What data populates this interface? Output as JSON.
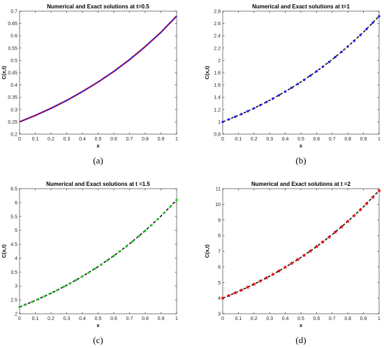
{
  "chart_data": [
    {
      "type": "line",
      "caption": "(a)",
      "title": "Numerical and Exact solutions at t=0.5",
      "xlabel": "x",
      "ylabel": "C(x,t)",
      "xlim": [
        0,
        1
      ],
      "ylim": [
        0.2,
        0.7
      ],
      "xticks": [
        "0",
        "0.1",
        "0.2",
        "0.3",
        "0.4",
        "0.5",
        "0.6",
        "0.7",
        "0.8",
        "0.9",
        "1"
      ],
      "yticks": [
        "0.2",
        "0.25",
        "0.3",
        "0.35",
        "0.4",
        "0.45",
        "0.5",
        "0.55",
        "0.6",
        "0.65",
        "0.7"
      ],
      "series": [
        {
          "style": "solid",
          "color": "#1a1aff",
          "x": [
            0,
            0.1,
            0.2,
            0.3,
            0.4,
            0.5,
            0.6,
            0.7,
            0.8,
            0.9,
            1.0
          ],
          "y": [
            0.25,
            0.276,
            0.305,
            0.337,
            0.373,
            0.412,
            0.455,
            0.503,
            0.556,
            0.614,
            0.68
          ]
        },
        {
          "style": "dashed",
          "color": "#cc0000",
          "x": [
            0,
            0.1,
            0.2,
            0.3,
            0.4,
            0.5,
            0.6,
            0.7,
            0.8,
            0.9,
            1.0
          ],
          "y": [
            0.25,
            0.276,
            0.305,
            0.337,
            0.373,
            0.412,
            0.455,
            0.503,
            0.556,
            0.614,
            0.68
          ]
        }
      ]
    },
    {
      "type": "line",
      "caption": "(b)",
      "title": "Numerical and Exact solutions at t=1",
      "xlabel": "x",
      "ylabel": "C(x,t)",
      "xlim": [
        0,
        1
      ],
      "ylim": [
        0.8,
        2.8
      ],
      "xticks": [
        "0",
        "0.1",
        "0.2",
        "0.3",
        "0.4",
        "0.5",
        "0.6",
        "0.7",
        "0.8",
        "0.9",
        "1"
      ],
      "yticks": [
        "0.8",
        "1",
        "1.2",
        "1.4",
        "1.6",
        "1.8",
        "2",
        "2.2",
        "2.4",
        "2.6",
        "2.8"
      ],
      "series": [
        {
          "style": "dashed",
          "color": "#111111",
          "x": [
            0,
            0.1,
            0.2,
            0.3,
            0.4,
            0.5,
            0.6,
            0.7,
            0.8,
            0.9,
            1.0
          ],
          "y": [
            1.0,
            1.105,
            1.221,
            1.35,
            1.492,
            1.649,
            1.822,
            2.014,
            2.226,
            2.46,
            2.718
          ]
        },
        {
          "style": "dots",
          "color": "#1a1aff",
          "x": [
            0,
            0.04,
            0.08,
            0.12,
            0.16,
            0.2,
            0.24,
            0.28,
            0.32,
            0.36,
            0.4,
            0.44,
            0.48,
            0.52,
            0.56,
            0.6,
            0.64,
            0.68,
            0.72,
            0.76,
            0.8,
            0.84,
            0.88,
            0.92,
            0.96,
            1.0
          ],
          "y": [
            1.0,
            1.041,
            1.083,
            1.127,
            1.174,
            1.221,
            1.271,
            1.323,
            1.377,
            1.433,
            1.492,
            1.553,
            1.616,
            1.682,
            1.751,
            1.822,
            1.896,
            1.974,
            2.054,
            2.138,
            2.226,
            2.316,
            2.411,
            2.509,
            2.612,
            2.718
          ]
        }
      ]
    },
    {
      "type": "line",
      "caption": "(c)",
      "title": "Numerical and Exact solutions at t =1.5",
      "xlabel": "x",
      "ylabel": "C(x,t)",
      "xlim": [
        0,
        1
      ],
      "ylim": [
        2,
        6.5
      ],
      "xticks": [
        "0",
        "0.1",
        "0.2",
        "0.3",
        "0.4",
        "0.5",
        "0.6",
        "0.7",
        "0.8",
        "0.9",
        "1"
      ],
      "yticks": [
        "2",
        "2.5",
        "3",
        "3.5",
        "4",
        "4.5",
        "5",
        "5.5",
        "6",
        "6.5"
      ],
      "series": [
        {
          "style": "dashed",
          "color": "#111111",
          "x": [
            0,
            0.1,
            0.2,
            0.3,
            0.4,
            0.5,
            0.6,
            0.7,
            0.8,
            0.9,
            1.0
          ],
          "y": [
            2.241,
            2.477,
            2.738,
            3.025,
            3.343,
            3.695,
            4.084,
            4.514,
            4.988,
            5.513,
            6.093
          ]
        },
        {
          "style": "dots",
          "color": "#22cc22",
          "x": [
            0,
            0.04,
            0.08,
            0.12,
            0.16,
            0.2,
            0.24,
            0.28,
            0.32,
            0.36,
            0.4,
            0.44,
            0.48,
            0.52,
            0.56,
            0.6,
            0.64,
            0.68,
            0.72,
            0.76,
            0.8,
            0.84,
            0.88,
            0.92,
            0.96,
            1.0
          ],
          "y": [
            2.241,
            2.333,
            2.428,
            2.526,
            2.629,
            2.738,
            2.849,
            2.965,
            3.086,
            3.212,
            3.343,
            3.479,
            3.621,
            3.769,
            3.923,
            4.084,
            4.25,
            4.423,
            4.604,
            4.792,
            4.988,
            5.191,
            5.403,
            5.624,
            5.854,
            6.093
          ]
        }
      ]
    },
    {
      "type": "scatter",
      "caption": "(d)",
      "title": "Numerical and Exact solutions at t =2",
      "xlabel": "x",
      "ylabel": "C(x,t)",
      "xlim": [
        0,
        1
      ],
      "ylim": [
        3,
        11
      ],
      "xticks": [
        "0",
        "0.1",
        "0.2",
        "0.3",
        "0.4",
        "0.5",
        "0.6",
        "0.7",
        "0.8",
        "0.9",
        "1"
      ],
      "yticks": [
        "3",
        "4",
        "5",
        "6",
        "7",
        "8",
        "9",
        "10",
        "11"
      ],
      "series": [
        {
          "style": "dashed",
          "color": "#111111",
          "x": [
            0,
            0.1,
            0.2,
            0.3,
            0.4,
            0.5,
            0.6,
            0.7,
            0.8,
            0.9,
            1.0
          ],
          "y": [
            4.0,
            4.424,
            4.889,
            5.403,
            5.972,
            6.6,
            7.294,
            8.061,
            8.909,
            9.846,
            10.88
          ]
        },
        {
          "style": "stars",
          "color": "#e60000",
          "x": [
            0,
            0.04,
            0.08,
            0.12,
            0.16,
            0.2,
            0.24,
            0.28,
            0.32,
            0.36,
            0.4,
            0.44,
            0.48,
            0.52,
            0.56,
            0.6,
            0.64,
            0.68,
            0.72,
            0.76,
            0.8,
            0.84,
            0.88,
            0.92,
            0.96,
            1.0
          ],
          "y": [
            4.0,
            4.166,
            4.336,
            4.512,
            4.697,
            4.889,
            5.089,
            5.296,
            5.512,
            5.737,
            5.972,
            6.215,
            6.468,
            6.732,
            7.006,
            7.294,
            7.591,
            7.901,
            8.223,
            8.559,
            8.909,
            9.271,
            9.649,
            10.04,
            10.45,
            10.88
          ]
        }
      ]
    }
  ]
}
